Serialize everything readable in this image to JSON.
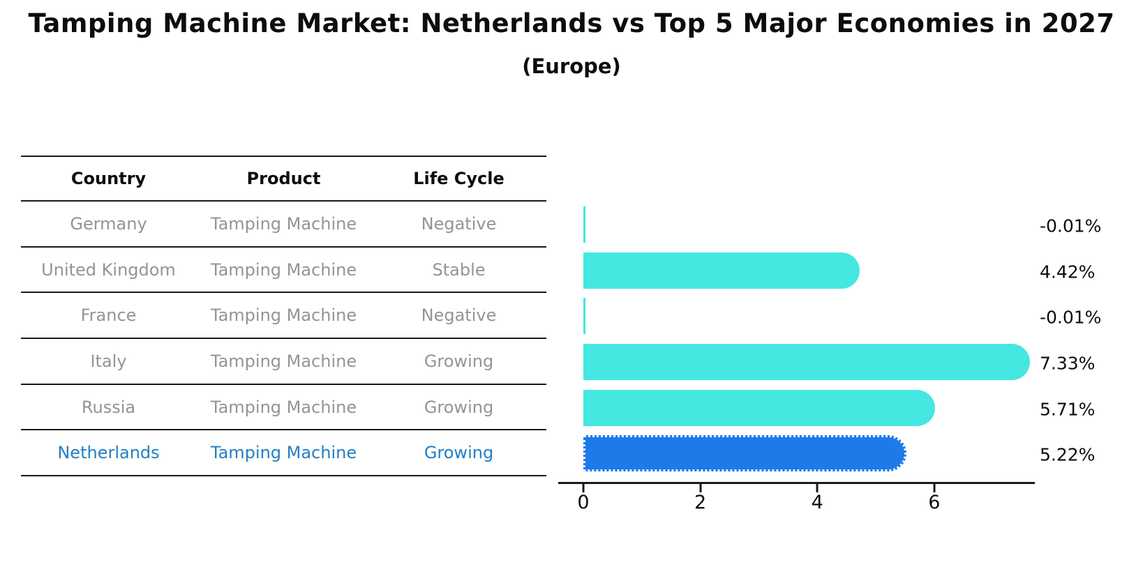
{
  "title": "Tamping Machine Market: Netherlands vs Top 5 Major Economies in 2027",
  "subtitle": "(Europe)",
  "table": {
    "headers": [
      "Country",
      "Product",
      "Life Cycle"
    ],
    "rows": [
      {
        "country": "Germany",
        "product": "Tamping Machine",
        "life_cycle": "Negative",
        "highlight": false
      },
      {
        "country": "United Kingdom",
        "product": "Tamping Machine",
        "life_cycle": "Stable",
        "highlight": false
      },
      {
        "country": "France",
        "product": "Tamping Machine",
        "life_cycle": "Negative",
        "highlight": false
      },
      {
        "country": "Italy",
        "product": "Tamping Machine",
        "life_cycle": "Growing",
        "highlight": false
      },
      {
        "country": "Russia",
        "product": "Tamping Machine",
        "life_cycle": "Growing",
        "highlight": false
      },
      {
        "country": "Netherlands",
        "product": "Tamping Machine",
        "life_cycle": "Growing",
        "highlight": true
      }
    ]
  },
  "chart_data": {
    "type": "bar",
    "orientation": "horizontal",
    "title": "Tamping Machine Market: Netherlands vs Top 5 Major Economies in 2027",
    "subtitle": "(Europe)",
    "categories": [
      "Germany",
      "United Kingdom",
      "France",
      "Italy",
      "Russia",
      "Netherlands"
    ],
    "values": [
      -0.01,
      4.42,
      -0.01,
      7.33,
      5.71,
      5.22
    ],
    "value_labels": [
      "-0.01%",
      "4.42%",
      "-0.01%",
      "7.33%",
      "5.71%",
      "5.22%"
    ],
    "unit": "%",
    "xticks": [
      0,
      2,
      4,
      6
    ],
    "xlim": [
      0,
      7.8
    ],
    "grid": false,
    "legend": false,
    "bar_color": "#45e7e0",
    "highlight_color": "#1e7ae8",
    "highlight_index": 5
  },
  "colors": {
    "text": "#0d0d0d",
    "muted_text": "#949494",
    "highlight_text": "#1f7fd4",
    "bar": "#45e7e0",
    "highlight_bar": "#1e7ae8"
  }
}
